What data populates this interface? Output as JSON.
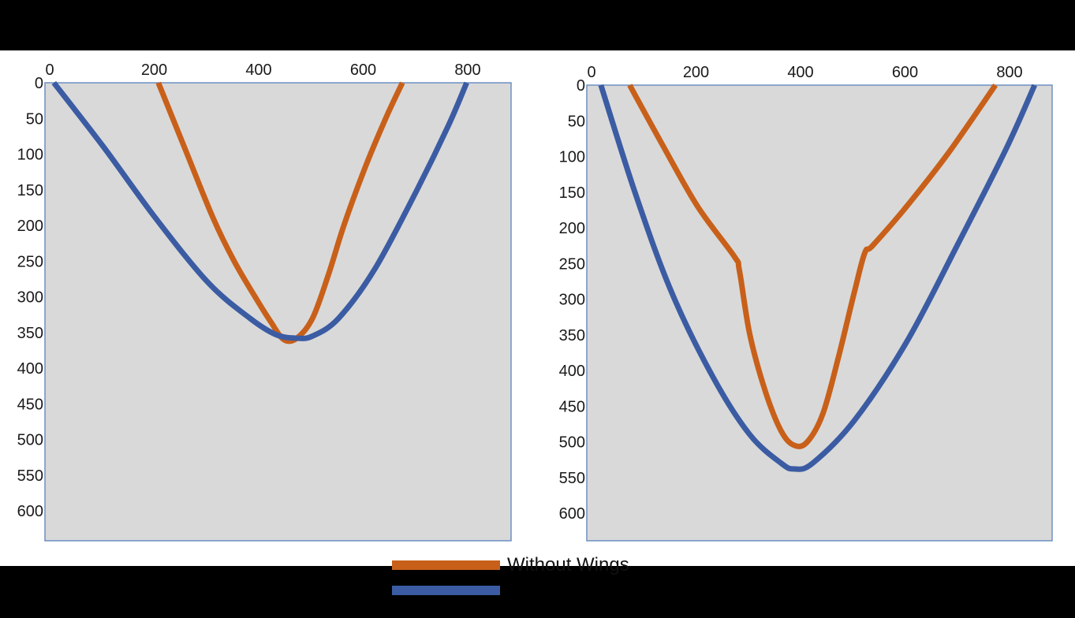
{
  "chart_data": [
    {
      "type": "line",
      "x_axis_position": "top",
      "y_axis_inverted": true,
      "xlim": [
        0,
        880
      ],
      "ylim": [
        0,
        640
      ],
      "xticks": [
        "0",
        "200",
        "400",
        "600",
        "800"
      ],
      "yticks": [
        "0",
        "50",
        "100",
        "150",
        "200",
        "250",
        "300",
        "350",
        "400",
        "450",
        "500",
        "550",
        "600"
      ],
      "grid": false,
      "plot_background": "#d9d9d9",
      "series": [
        {
          "name": "Without Wings",
          "color": "#c8601a",
          "x": [
            205,
            260,
            310,
            350,
            390,
            420,
            445,
            470,
            500,
            530,
            560,
            600,
            640,
            672
          ],
          "y": [
            0,
            100,
            190,
            250,
            300,
            335,
            360,
            358,
            330,
            270,
            200,
            120,
            50,
            0
          ]
        },
        {
          "color": "#3b5ca3",
          "x": [
            5,
            100,
            200,
            300,
            380,
            430,
            470,
            500,
            550,
            620,
            700,
            760,
            795
          ],
          "y": [
            0,
            90,
            190,
            280,
            330,
            353,
            358,
            355,
            330,
            260,
            150,
            60,
            0
          ]
        }
      ]
    },
    {
      "type": "line",
      "x_axis_position": "top",
      "y_axis_inverted": true,
      "xlim": [
        0,
        880
      ],
      "ylim": [
        0,
        640
      ],
      "xticks": [
        "0",
        "200",
        "400",
        "600",
        "800"
      ],
      "yticks": [
        "0",
        "50",
        "100",
        "150",
        "200",
        "250",
        "300",
        "350",
        "400",
        "450",
        "500",
        "550",
        "600"
      ],
      "grid": false,
      "plot_background": "#d9d9d9",
      "series": [
        {
          "name": "Without Wings",
          "color": "#c8601a",
          "x": [
            70,
            130,
            200,
            270,
            280,
            300,
            330,
            360,
            385,
            410,
            440,
            470,
            500,
            520,
            535,
            600,
            680,
            770
          ],
          "y": [
            0,
            80,
            170,
            240,
            260,
            350,
            430,
            485,
            505,
            500,
            460,
            380,
            290,
            235,
            225,
            170,
            95,
            0
          ]
        },
        {
          "color": "#3b5ca3",
          "x": [
            15,
            80,
            150,
            230,
            300,
            360,
            385,
            420,
            500,
            600,
            700,
            790,
            845
          ],
          "y": [
            0,
            150,
            290,
            410,
            490,
            530,
            538,
            530,
            470,
            360,
            220,
            90,
            0
          ]
        }
      ]
    }
  ],
  "legend": {
    "placement": "bottom-center",
    "entries": [
      {
        "label": "Without Wings",
        "color": "#c8601a"
      },
      {
        "label": "",
        "color": "#3b5ca3"
      }
    ]
  },
  "colors": {
    "background": "#000000",
    "band": "#ffffff",
    "plot_area": "#d9d9d9",
    "axis": "#6d8fc2"
  }
}
